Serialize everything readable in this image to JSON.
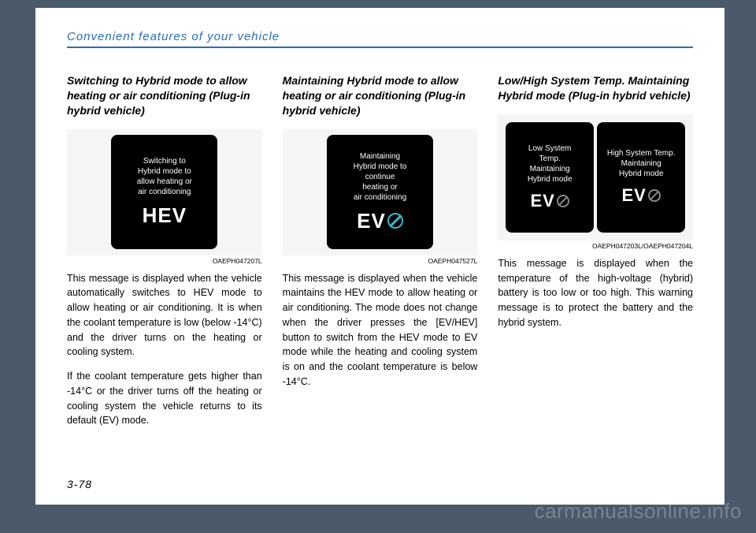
{
  "header": "Convenient features of your vehicle",
  "pagenum": "3-78",
  "watermark": "carmanualsonline.info",
  "columns": [
    {
      "subhead": "Switching to Hybrid mode to allow heating or air conditioning (Plug-in hybrid vehicle)",
      "screens": [
        {
          "text": "Switching to\nHybrid mode to\nallow heating or\nair conditioning",
          "mode": "HEV",
          "prohibit": false,
          "prohibitColor": null
        }
      ],
      "imgcode": "OAEPH047207L",
      "paragraphs": [
        "This message is displayed when the vehicle automatically switches to HEV mode to allow heating or air conditioning. It is when the coolant temperature is low (below -14°C) and the driver turns on the heating or cooling system.",
        "If the coolant temperature gets higher than -14°C or the driver turns off the heating or cooling system the vehicle returns to its default (EV) mode."
      ]
    },
    {
      "subhead": "Maintaining Hybrid mode to allow heating or air conditioning (Plug-in hybrid vehicle)",
      "screens": [
        {
          "text": "Maintaining\nHybrid mode to\ncontinue\nheating or\nair conditioning",
          "mode": "EV",
          "prohibit": true,
          "prohibitColor": "cyan"
        }
      ],
      "imgcode": "OAEPH047527L",
      "paragraphs": [
        "This message is displayed when the vehicle maintains the HEV mode to allow heating or air conditioning. The mode does not change when the driver presses the [EV/HEV] button to switch from the HEV mode to EV mode while the heating and cooling system is on and the coolant temperature is below -14°C."
      ]
    },
    {
      "subhead": "Low/High System Temp. Maintaining Hybrid mode (Plug-in hybrid vehicle)",
      "screens": [
        {
          "text": "Low System\nTemp.\nMaintaining\nHybrid mode",
          "mode": "EV",
          "prohibit": true,
          "prohibitColor": "grey"
        },
        {
          "text": "High System Temp.\nMaintaining\nHybrid mode",
          "mode": "EV",
          "prohibit": true,
          "prohibitColor": "grey"
        }
      ],
      "imgcode": "OAEPH047203L/OAEPH047204L",
      "paragraphs": [
        "This message is displayed when the temperature of the high-voltage (hybrid) battery is too low or too high. This warning message is to protect the battery and the hybrid system."
      ]
    }
  ]
}
